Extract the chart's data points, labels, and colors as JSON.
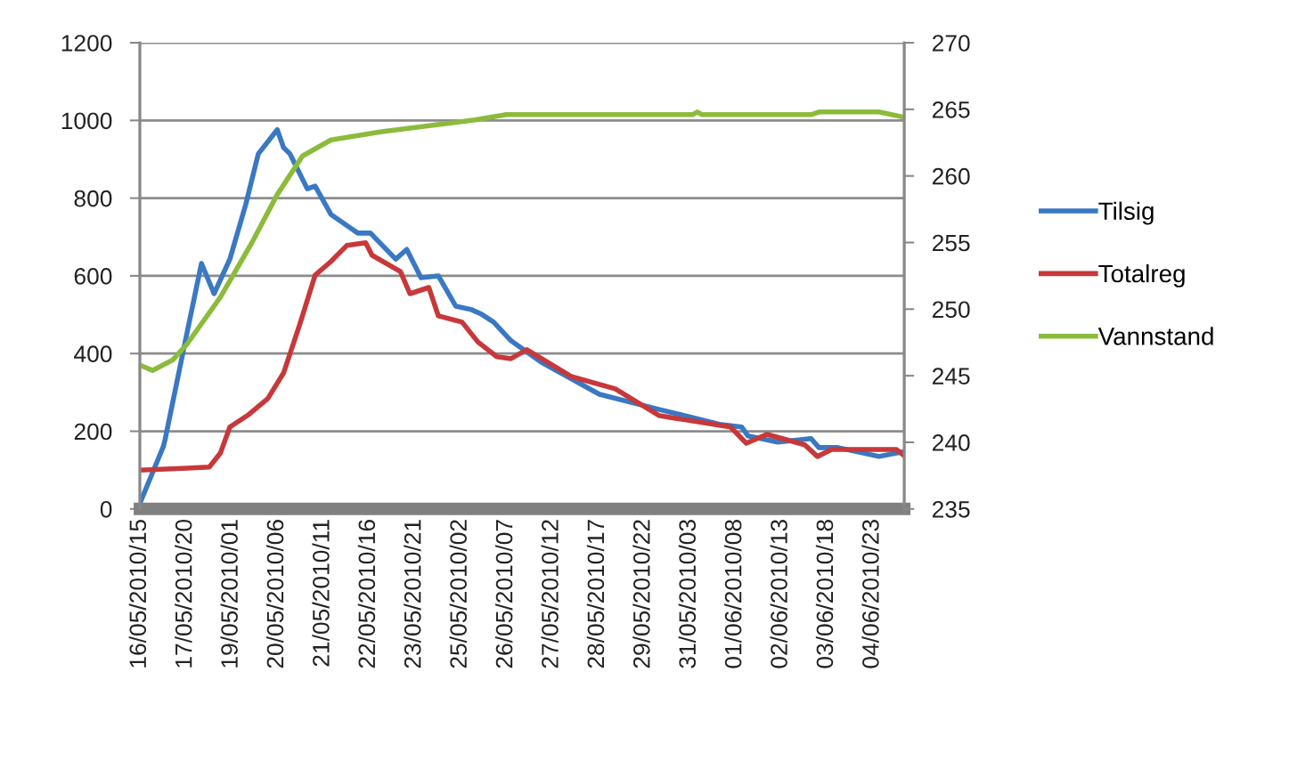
{
  "chart_data": {
    "type": "line",
    "xlim": [
      "2010-05-16T15:00",
      "2010-06-05T19:00"
    ],
    "xticks": [
      {
        "value": "2010-05-16T15:00",
        "label": "16/05/2010/15"
      },
      {
        "value": "2010-05-17T20:00",
        "label": "17/05/2010/20"
      },
      {
        "value": "2010-05-19T01:00",
        "label": "19/05/2010/01"
      },
      {
        "value": "2010-05-20T06:00",
        "label": "20/05/2010/06"
      },
      {
        "value": "2010-05-21T11:00",
        "label": "21/05/2010/11"
      },
      {
        "value": "2010-05-22T16:00",
        "label": "22/05/2010/16"
      },
      {
        "value": "2010-05-23T21:00",
        "label": "23/05/2010/21"
      },
      {
        "value": "2010-05-25T02:00",
        "label": "25/05/2010/02"
      },
      {
        "value": "2010-05-26T07:00",
        "label": "26/05/2010/07"
      },
      {
        "value": "2010-05-27T12:00",
        "label": "27/05/2010/12"
      },
      {
        "value": "2010-05-28T17:00",
        "label": "28/05/2010/17"
      },
      {
        "value": "2010-05-29T22:00",
        "label": "29/05/2010/22"
      },
      {
        "value": "2010-05-31T03:00",
        "label": "31/05/2010/03"
      },
      {
        "value": "2010-06-01T08:00",
        "label": "01/06/2010/08"
      },
      {
        "value": "2010-06-02T13:00",
        "label": "02/06/2010/13"
      },
      {
        "value": "2010-06-03T18:00",
        "label": "03/06/2010/18"
      },
      {
        "value": "2010-06-04T23:00",
        "label": "04/06/2010/23"
      }
    ],
    "ylim": [
      0,
      1200
    ],
    "yticks": [
      0,
      200,
      400,
      600,
      800,
      1000,
      1200
    ],
    "y2lim": [
      235,
      270
    ],
    "y2ticks": [
      235,
      240,
      245,
      250,
      255,
      260,
      265,
      270
    ],
    "grid": "y",
    "legend": "right",
    "series": [
      {
        "name": "Tilsig",
        "color": "#3a78c3",
        "x": [
          "2010-05-16T15:00",
          "2010-05-17T06:00",
          "2010-05-17T07:00",
          "2010-05-17T21:00",
          "2010-05-18T06:00",
          "2010-05-18T14:00",
          "2010-05-19T00:00",
          "2010-05-19T10:00",
          "2010-05-19T18:00",
          "2010-05-20T06:00",
          "2010-05-20T10:00",
          "2010-05-20T14:00",
          "2010-05-21T01:00",
          "2010-05-21T06:00",
          "2010-05-21T16:00",
          "2010-05-22T09:00",
          "2010-05-22T17:00",
          "2010-05-23T09:00",
          "2010-05-23T16:00",
          "2010-05-24T01:00",
          "2010-05-24T12:00",
          "2010-05-24T23:00",
          "2010-05-25T09:00",
          "2010-05-25T15:00",
          "2010-05-25T23:00",
          "2010-05-26T10:00",
          "2010-05-27T05:00",
          "2010-05-28T18:00",
          "2010-05-30T08:00",
          "2010-05-31T22:00",
          "2010-06-01T12:00",
          "2010-06-01T16:00",
          "2010-06-02T11:00",
          "2010-06-03T08:00",
          "2010-06-03T13:00",
          "2010-06-04T01:00",
          "2010-06-05T03:00",
          "2010-06-05T18:00"
        ],
        "values": [
          14,
          162,
          179,
          456,
          632,
          554,
          643,
          783,
          914,
          976,
          930,
          914,
          824,
          831,
          758,
          710,
          710,
          643,
          668,
          595,
          600,
          522,
          513,
          502,
          481,
          433,
          378,
          295,
          256,
          218,
          211,
          188,
          172,
          181,
          158,
          158,
          135,
          147
        ]
      },
      {
        "name": "Totalreg",
        "color": "#c8383a",
        "x": [
          "2010-05-16T15:00",
          "2010-05-17T21:00",
          "2010-05-18T11:00",
          "2010-05-18T18:00",
          "2010-05-19T00:00",
          "2010-05-19T12:00",
          "2010-05-20T00:00",
          "2010-05-20T10:00",
          "2010-05-20T20:00",
          "2010-05-21T06:00",
          "2010-05-21T16:00",
          "2010-05-22T02:00",
          "2010-05-22T14:00",
          "2010-05-22T18:00",
          "2010-05-23T12:00",
          "2010-05-23T18:00",
          "2010-05-24T06:00",
          "2010-05-24T12:00",
          "2010-05-25T03:00",
          "2010-05-25T13:00",
          "2010-05-26T01:00",
          "2010-05-26T10:00",
          "2010-05-26T20:00",
          "2010-05-28T00:00",
          "2010-05-29T04:00",
          "2010-05-30T08:00",
          "2010-06-01T05:00",
          "2010-06-01T15:00",
          "2010-06-02T04:00",
          "2010-06-03T04:00",
          "2010-06-03T12:00",
          "2010-06-03T21:00",
          "2010-06-05T14:00",
          "2010-06-05T19:00"
        ],
        "values": [
          100,
          105,
          108,
          144,
          211,
          243,
          284,
          350,
          472,
          602,
          637,
          678,
          685,
          653,
          611,
          554,
          570,
          497,
          481,
          430,
          392,
          387,
          410,
          341,
          309,
          240,
          211,
          169,
          192,
          165,
          135,
          153,
          153,
          137
        ]
      },
      {
        "name": "Vannstand",
        "color": "#8cbb3c",
        "axis": "y2",
        "x": [
          "2010-05-16T15:00",
          "2010-05-16T23:00",
          "2010-05-17T12:00",
          "2010-05-17T21:00",
          "2010-05-18T18:00",
          "2010-05-19T14:00",
          "2010-05-20T06:00",
          "2010-05-20T22:00",
          "2010-05-21T16:00",
          "2010-05-22T23:00",
          "2010-05-24T15:00",
          "2010-05-25T11:00",
          "2010-05-26T07:00",
          "2010-05-31T05:00",
          "2010-05-31T08:00",
          "2010-05-31T11:00",
          "2010-06-03T08:00",
          "2010-06-03T13:00",
          "2010-06-05T03:00",
          "2010-06-05T19:00"
        ],
        "values": [
          245.8,
          245.4,
          246.2,
          247.4,
          250.9,
          255.0,
          258.6,
          261.5,
          262.7,
          263.3,
          263.9,
          264.2,
          264.6,
          264.6,
          264.8,
          264.6,
          264.6,
          264.8,
          264.8,
          264.4
        ]
      }
    ]
  }
}
